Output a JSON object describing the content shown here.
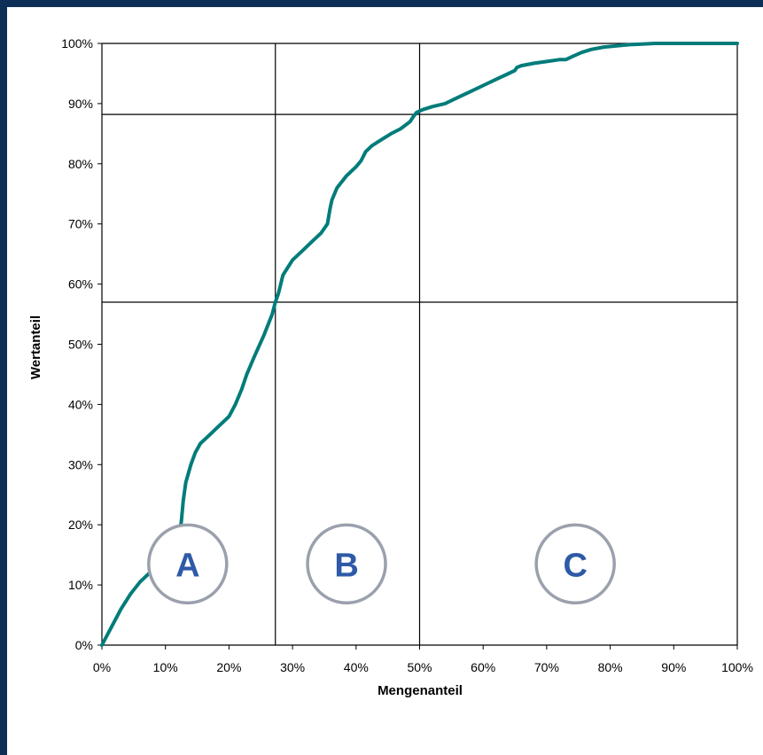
{
  "chart_data": {
    "type": "line",
    "title": "",
    "xlabel": "Mengenanteil",
    "ylabel": "Wertanteil",
    "xlim": [
      0,
      100
    ],
    "ylim": [
      0,
      100
    ],
    "x_ticks": [
      "0%",
      "10%",
      "20%",
      "30%",
      "40%",
      "50%",
      "60%",
      "70%",
      "80%",
      "90%",
      "100%"
    ],
    "y_ticks": [
      "0%",
      "10%",
      "20%",
      "30%",
      "40%",
      "50%",
      "60%",
      "70%",
      "80%",
      "90%",
      "100%"
    ],
    "grid": false,
    "legend": "none",
    "line_color": "#007c7a",
    "series": [
      {
        "x": [
          0,
          1.5,
          3,
          4.5,
          6,
          7.5,
          9,
          10.5,
          12,
          12.5,
          12.8,
          13.2,
          14,
          14.7,
          15.5,
          17,
          18.5,
          20,
          21,
          22,
          22.8,
          24,
          25.5,
          26.8,
          27.3,
          27.8,
          28.5,
          30,
          31.5,
          33,
          34.5,
          35.5,
          35.9,
          36.2,
          37,
          38.5,
          40,
          40.8,
          41.5,
          42.5,
          44,
          45.5,
          47,
          48.5,
          49,
          49.5,
          50.5,
          52,
          54,
          56,
          58,
          60,
          62,
          64,
          65,
          65.3,
          66,
          68,
          70,
          72,
          73,
          74,
          75.5,
          77,
          79,
          81,
          83,
          85,
          87,
          90,
          95,
          100
        ],
        "y": [
          0,
          3,
          6,
          8.5,
          10.5,
          12,
          13.5,
          15,
          17.5,
          20.5,
          24,
          27,
          30,
          32,
          33.5,
          35,
          36.5,
          38,
          40,
          42.5,
          45,
          48,
          51.5,
          55,
          57,
          58.5,
          61.5,
          64,
          65.5,
          67,
          68.5,
          70,
          72.5,
          74,
          76,
          78,
          79.5,
          80.5,
          82,
          83,
          84,
          85,
          85.8,
          87,
          87.8,
          88.5,
          89,
          89.5,
          90,
          91,
          92,
          93,
          94,
          95,
          95.5,
          96,
          96.3,
          96.7,
          97,
          97.3,
          97.3,
          97.8,
          98.5,
          99,
          99.4,
          99.6,
          99.8,
          99.9,
          100,
          100,
          100,
          100
        ]
      }
    ],
    "reference_lines": {
      "vertical_x": [
        27.3,
        50
      ],
      "horizontal_y": [
        57,
        88.2
      ]
    },
    "zones": [
      {
        "label": "A",
        "center_x": 13.5,
        "center_y": 13.5
      },
      {
        "label": "B",
        "center_x": 38.5,
        "center_y": 13.5
      },
      {
        "label": "C",
        "center_x": 74.5,
        "center_y": 13.5
      }
    ],
    "zone_circle_stroke": "#9aa0ac",
    "zone_letter_color": "#2e5aa7"
  }
}
